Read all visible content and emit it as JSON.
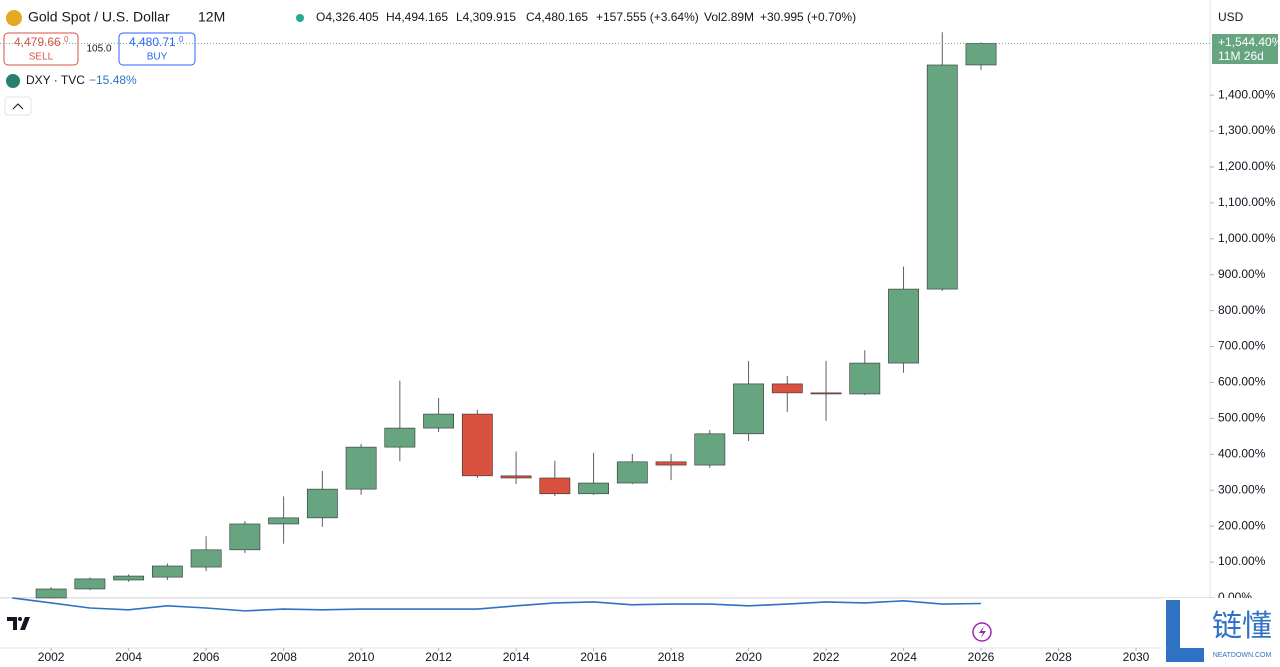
{
  "header": {
    "symbol": "Gold Spot / U.S. Dollar",
    "interval": "12M",
    "open": "O4,326.405",
    "high": "H4,494.165",
    "low": "L4,309.915",
    "close": "C4,480.165",
    "change": "+157.555 (+3.64%)",
    "volume": "Vol2.89M",
    "volume_change": "+30.995 (+0.70%)",
    "sell_price": "4,479.66",
    "sell_frac": "0",
    "sell": "SELL",
    "spread": "105.0",
    "buy_price": "4,480.71",
    "buy_frac": "0",
    "buy": "BUY",
    "currency": "USD",
    "last_label": "+1,544.40%",
    "countdown": "11M 26d",
    "brand": "链懂",
    "brand_sub": "NEATDOWN.COM"
  },
  "chart_data": {
    "type": "candlestick",
    "up_color": "#67a581",
    "down_color": "#d9513f",
    "x": [
      2002,
      2003,
      2004,
      2005,
      2006,
      2007,
      2008,
      2009,
      2010,
      2011,
      2012,
      2013,
      2014,
      2015,
      2016,
      2017,
      2018,
      2019,
      2020,
      2021,
      2022,
      2023,
      2024,
      2025,
      2026
    ],
    "open": [
      0,
      25,
      50,
      58,
      86,
      134,
      206,
      223,
      303,
      420,
      473,
      512,
      340,
      334,
      290,
      320,
      379,
      370,
      457,
      596,
      571,
      568,
      654,
      860,
      1484
    ],
    "high": [
      30,
      57,
      66,
      96,
      172,
      214,
      283,
      354,
      429,
      605,
      557,
      524,
      408,
      382,
      404,
      401,
      401,
      468,
      660,
      618,
      660,
      690,
      923,
      1575,
      1547
    ],
    "low": [
      -1,
      22,
      45,
      50,
      75,
      125,
      151,
      198,
      287,
      381,
      462,
      334,
      317,
      284,
      287,
      317,
      328,
      362,
      437,
      518,
      493,
      565,
      627,
      855,
      1470
    ],
    "close": [
      25,
      53,
      61,
      89,
      134,
      206,
      223,
      303,
      420,
      473,
      512,
      340,
      334,
      290,
      320,
      379,
      370,
      457,
      596,
      571,
      568,
      654,
      860,
      1484,
      1544
    ],
    "xlim": [
      2000.68,
      2031.91
    ],
    "xticks": [
      2002,
      2004,
      2006,
      2008,
      2010,
      2012,
      2014,
      2016,
      2018,
      2020,
      2022,
      2024,
      2026,
      2028,
      2030
    ],
    "ylim": [
      -131,
      1651
    ],
    "yticks": [
      {
        "value": 0,
        "label": "0.00%"
      },
      {
        "value": 100,
        "label": "100.00%"
      },
      {
        "value": 200,
        "label": "200.00%"
      },
      {
        "value": 300,
        "label": "300.00%"
      },
      {
        "value": 400,
        "label": "400.00%"
      },
      {
        "value": 500,
        "label": "500.00%"
      },
      {
        "value": 600,
        "label": "600.00%"
      },
      {
        "value": 700,
        "label": "700.00%"
      },
      {
        "value": 800,
        "label": "800.00%"
      },
      {
        "value": 900,
        "label": "900.00%"
      },
      {
        "value": 1000,
        "label": "1,000.00%"
      },
      {
        "value": 1100,
        "label": "1,100.00%"
      },
      {
        "value": 1200,
        "label": "1,200.00%"
      },
      {
        "value": 1300,
        "label": "1,300.00%"
      },
      {
        "value": 1400,
        "label": "1,400.00%"
      }
    ],
    "compare": {
      "name": "DXY · TVC",
      "color": "#2f72c4",
      "x": [
        2001,
        2002,
        2003,
        2004,
        2005,
        2006,
        2007,
        2008,
        2009,
        2010,
        2011,
        2012,
        2013,
        2014,
        2015,
        2016,
        2017,
        2018,
        2019,
        2020,
        2021,
        2022,
        2023,
        2024,
        2025,
        2026
      ],
      "values": [
        0,
        -14,
        -28,
        -33,
        -22,
        -28,
        -36,
        -31,
        -33,
        -31,
        -31,
        -31,
        -31,
        -22,
        -14,
        -11,
        -19,
        -17,
        -17,
        -22,
        -17,
        -11,
        -14,
        -8,
        -17,
        -15.48
      ],
      "value_labels": {
        "25": "−15.48%"
      }
    }
  }
}
